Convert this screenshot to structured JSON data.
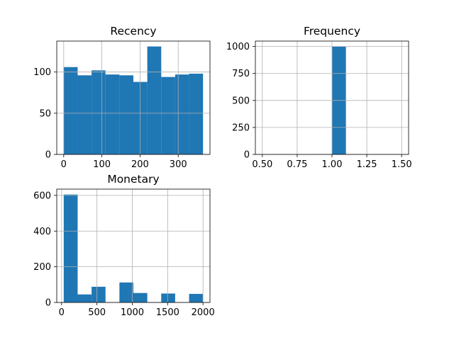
{
  "chart_data": [
    {
      "type": "histogram",
      "title": "Recency",
      "xlabel": "",
      "ylabel": "",
      "bin_edges": [
        0,
        36.5,
        73,
        109.5,
        146,
        182.5,
        219,
        255.5,
        292,
        328.5,
        365
      ],
      "counts": [
        106,
        96,
        102,
        97,
        96,
        88,
        131,
        94,
        97,
        98
      ],
      "xlim": [
        -18.25,
        383.25
      ],
      "ylim": [
        0,
        137.55
      ],
      "xticks": [
        0,
        100,
        200,
        300
      ],
      "yticks": [
        0,
        50,
        100
      ],
      "grid": true,
      "color": "#1f77b4"
    },
    {
      "type": "histogram",
      "title": "Frequency",
      "xlabel": "",
      "ylabel": "",
      "bin_edges": [
        0.5,
        0.6,
        0.7,
        0.8,
        0.9,
        1.0,
        1.1,
        1.2,
        1.3,
        1.4,
        1.5
      ],
      "counts": [
        0,
        0,
        0,
        0,
        0,
        1000,
        0,
        0,
        0,
        0
      ],
      "xlim": [
        0.45,
        1.55
      ],
      "ylim": [
        0,
        1050
      ],
      "xticks": [
        0.5,
        0.75,
        1.0,
        1.25,
        1.5
      ],
      "xtick_labels": [
        "0.50",
        "0.75",
        "1.00",
        "1.25",
        "1.50"
      ],
      "yticks": [
        0,
        250,
        500,
        750,
        1000
      ],
      "grid": true,
      "color": "#1f77b4"
    },
    {
      "type": "histogram",
      "title": "Monetary",
      "xlabel": "",
      "ylabel": "",
      "bin_edges": [
        30,
        227,
        424,
        621,
        818,
        1015,
        1212,
        1409,
        1606,
        1803,
        2000
      ],
      "counts": [
        605,
        45,
        88,
        0,
        112,
        53,
        0,
        50,
        0,
        48
      ],
      "xlim": [
        -68.5,
        2098.5
      ],
      "ylim": [
        0,
        635.25
      ],
      "xticks": [
        0,
        500,
        1000,
        1500,
        2000
      ],
      "yticks": [
        0,
        200,
        400,
        600
      ],
      "grid": true,
      "color": "#1f77b4"
    }
  ]
}
